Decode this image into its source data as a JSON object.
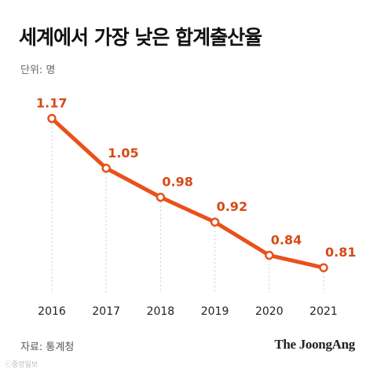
{
  "title": "세계에서 가장 낮은 합계출산율",
  "unit_label": "단위: 명",
  "source_label": "자료: 통계청",
  "brand": "The JoongAng",
  "watermark": "ⓒ중앙일보",
  "colors": {
    "line": "#e9511a",
    "label": "#d64a16",
    "grid": "#cccccc"
  },
  "chart_data": {
    "type": "line",
    "categories": [
      "2016",
      "2017",
      "2018",
      "2019",
      "2020",
      "2021"
    ],
    "series": [
      {
        "values": [
          1.17,
          1.05,
          0.98,
          0.92,
          0.84,
          0.81
        ]
      }
    ],
    "data_labels": [
      "1.17",
      "1.05",
      "0.98",
      "0.92",
      "0.84",
      "0.81"
    ],
    "ylim": [
      0.78,
      1.19
    ],
    "grid": "vertical dotted per category",
    "legend": "none"
  }
}
